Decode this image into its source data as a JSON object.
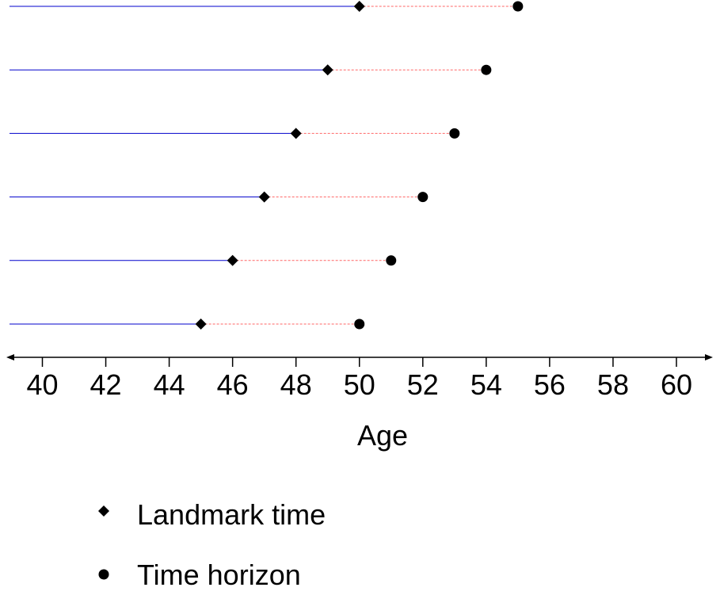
{
  "chart_data": {
    "type": "scatter",
    "xlabel": "Age",
    "xlim": [
      39,
      61
    ],
    "x_ticks": [
      40,
      42,
      44,
      46,
      48,
      50,
      52,
      54,
      56,
      58,
      60
    ],
    "rows": [
      {
        "landmark": 50,
        "horizon": 55
      },
      {
        "landmark": 49,
        "horizon": 54
      },
      {
        "landmark": 48,
        "horizon": 53
      },
      {
        "landmark": 47,
        "horizon": 52
      },
      {
        "landmark": 46,
        "horizon": 51
      },
      {
        "landmark": 45,
        "horizon": 50
      }
    ],
    "colors": {
      "history_line": "#0000cc",
      "prediction_line": "#ff6666",
      "marker": "#000000"
    },
    "legend": {
      "placement": "bottom-left",
      "items": [
        {
          "label": "Landmark time",
          "marker": "diamond"
        },
        {
          "label": "Time horizon",
          "marker": "circle"
        }
      ]
    }
  }
}
